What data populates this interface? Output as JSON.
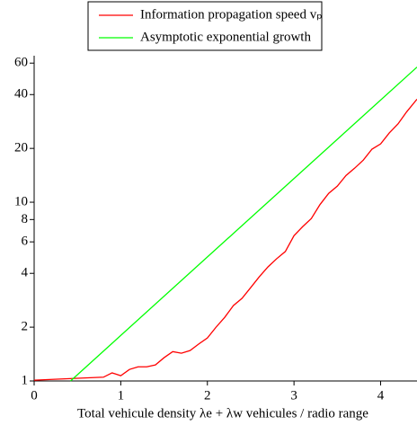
{
  "chart_data": {
    "type": "line",
    "xlabel": "Total vehicule density λe + λw vehicules / radio range",
    "xlim": [
      0,
      4.42
    ],
    "xticks": [
      0,
      1,
      2,
      3,
      4
    ],
    "ylim": [
      1,
      66
    ],
    "yticks": [
      1,
      2,
      4,
      6,
      8,
      10,
      20,
      40,
      60
    ],
    "log_y": true,
    "grid": false,
    "legend": "top",
    "series": [
      {
        "name": "Information propagation speed vₚ",
        "color": "#ff0000",
        "x": [
          0,
          0.5,
          0.8,
          0.9,
          1.0,
          1.1,
          1.2,
          1.3,
          1.4,
          1.5,
          1.6,
          1.7,
          1.8,
          1.9,
          2.0,
          2.1,
          2.2,
          2.3,
          2.4,
          2.5,
          2.6,
          2.7,
          2.8,
          2.9,
          3.0,
          3.1,
          3.2,
          3.3,
          3.4,
          3.5,
          3.6,
          3.7,
          3.8,
          3.9,
          4.0,
          4.1,
          4.2,
          4.3,
          4.42
        ],
        "values": [
          1.01,
          1.035,
          1.05,
          1.11,
          1.07,
          1.16,
          1.2,
          1.2,
          1.23,
          1.35,
          1.46,
          1.43,
          1.48,
          1.61,
          1.74,
          2.0,
          2.27,
          2.64,
          2.9,
          3.33,
          3.83,
          4.35,
          4.83,
          5.3,
          6.5,
          7.3,
          8.1,
          9.7,
          11.2,
          12.3,
          14.1,
          15.5,
          17.2,
          19.8,
          21.2,
          24.4,
          27.4,
          32.0,
          37.7
        ]
      },
      {
        "name": "Asymptotic exponential growth",
        "color": "#00ff00",
        "x": [
          0.42,
          4.42
        ],
        "values": [
          1,
          57
        ]
      }
    ]
  }
}
